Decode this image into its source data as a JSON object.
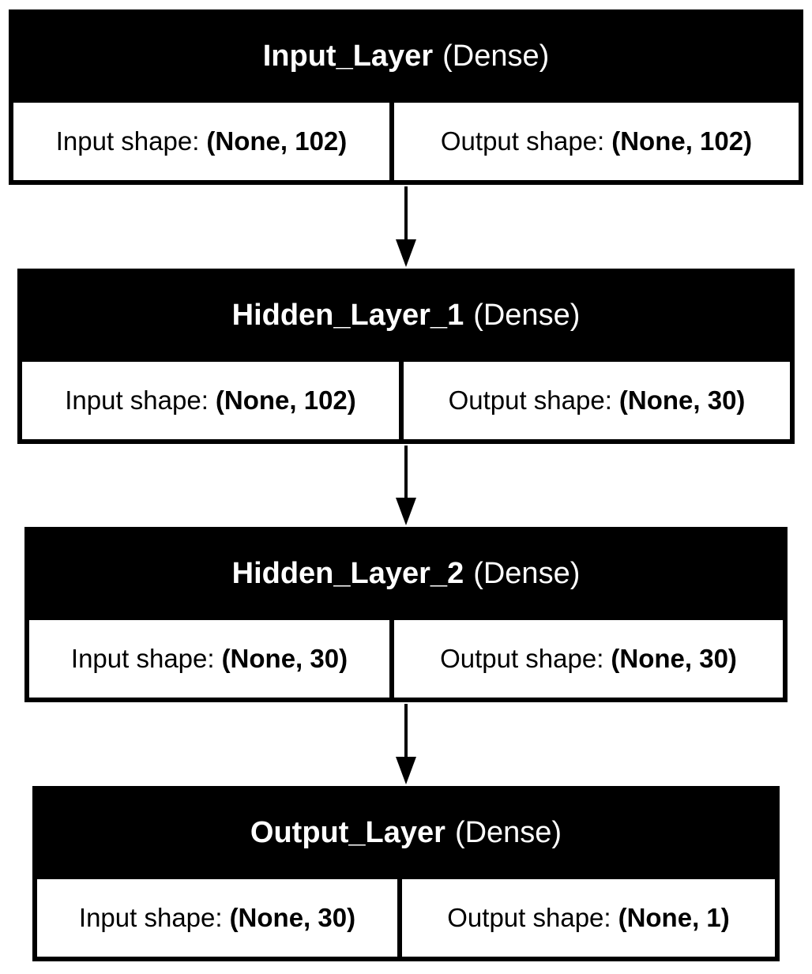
{
  "diagram": {
    "layers": [
      {
        "name": "Input_Layer",
        "type": "(Dense)",
        "input_label": "Input shape:",
        "input_shape": "(None, 102)",
        "output_label": "Output shape:",
        "output_shape": "(None, 102)"
      },
      {
        "name": "Hidden_Layer_1",
        "type": "(Dense)",
        "input_label": "Input shape:",
        "input_shape": "(None, 102)",
        "output_label": "Output shape:",
        "output_shape": "(None, 30)"
      },
      {
        "name": "Hidden_Layer_2",
        "type": "(Dense)",
        "input_label": "Input shape:",
        "input_shape": "(None, 30)",
        "output_label": "Output shape:",
        "output_shape": "(None, 30)"
      },
      {
        "name": "Output_Layer",
        "type": "(Dense)",
        "input_label": "Input shape:",
        "input_shape": "(None, 30)",
        "output_label": "Output shape:",
        "output_shape": "(None, 1)"
      }
    ],
    "colors": {
      "box": "#000000",
      "header_text": "#ffffff",
      "cell_background": "#ffffff",
      "arrow": "#000000"
    }
  }
}
